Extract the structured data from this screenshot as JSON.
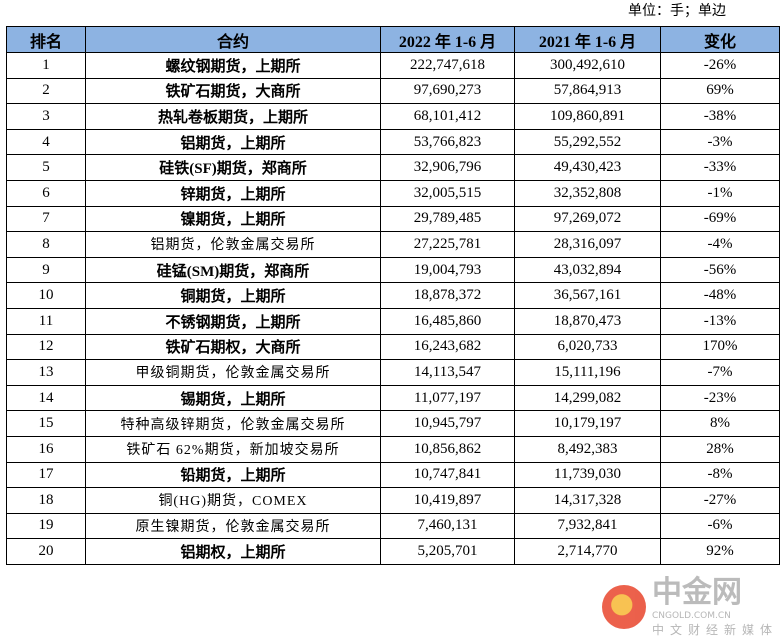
{
  "unit_note": "单位：手；单边",
  "headers": [
    "排名",
    "合约",
    "2022 年 1-6 月",
    "2021 年 1-6 月",
    "变化"
  ],
  "rows": [
    {
      "rank": "1",
      "contract": "螺纹钢期货，上期所",
      "y2022": "222,747,618",
      "y2021": "300,492,610",
      "change": "-26%",
      "bold": true
    },
    {
      "rank": "2",
      "contract": "铁矿石期货，大商所",
      "y2022": "97,690,273",
      "y2021": "57,864,913",
      "change": "69%",
      "bold": true
    },
    {
      "rank": "3",
      "contract": "热轧卷板期货，上期所",
      "y2022": "68,101,412",
      "y2021": "109,860,891",
      "change": "-38%",
      "bold": true
    },
    {
      "rank": "4",
      "contract": "铝期货，上期所",
      "y2022": "53,766,823",
      "y2021": "55,292,552",
      "change": "-3%",
      "bold": true
    },
    {
      "rank": "5",
      "contract": "硅铁(SF)期货，郑商所",
      "y2022": "32,906,796",
      "y2021": "49,430,423",
      "change": "-33%",
      "bold": true
    },
    {
      "rank": "6",
      "contract": "锌期货，上期所",
      "y2022": "32,005,515",
      "y2021": "32,352,808",
      "change": "-1%",
      "bold": true
    },
    {
      "rank": "7",
      "contract": "镍期货，上期所",
      "y2022": "29,789,485",
      "y2021": "97,269,072",
      "change": "-69%",
      "bold": true
    },
    {
      "rank": "8",
      "contract": "铝期货，伦敦金属交易所",
      "y2022": "27,225,781",
      "y2021": "28,316,097",
      "change": "-4%",
      "bold": false
    },
    {
      "rank": "9",
      "contract": "硅锰(SM)期货，郑商所",
      "y2022": "19,004,793",
      "y2021": "43,032,894",
      "change": "-56%",
      "bold": true
    },
    {
      "rank": "10",
      "contract": "铜期货，上期所",
      "y2022": "18,878,372",
      "y2021": "36,567,161",
      "change": "-48%",
      "bold": true
    },
    {
      "rank": "11",
      "contract": "不锈钢期货，上期所",
      "y2022": "16,485,860",
      "y2021": "18,870,473",
      "change": "-13%",
      "bold": true
    },
    {
      "rank": "12",
      "contract": "铁矿石期权，大商所",
      "y2022": "16,243,682",
      "y2021": "6,020,733",
      "change": "170%",
      "bold": true
    },
    {
      "rank": "13",
      "contract": "甲级铜期货，伦敦金属交易所",
      "y2022": "14,113,547",
      "y2021": "15,111,196",
      "change": "-7%",
      "bold": false
    },
    {
      "rank": "14",
      "contract": "锡期货，上期所",
      "y2022": "11,077,197",
      "y2021": "14,299,082",
      "change": "-23%",
      "bold": true
    },
    {
      "rank": "15",
      "contract": "特种高级锌期货，伦敦金属交易所",
      "y2022": "10,945,797",
      "y2021": "10,179,197",
      "change": "8%",
      "bold": false
    },
    {
      "rank": "16",
      "contract": "铁矿石 62%期货，新加坡交易所",
      "y2022": "10,856,862",
      "y2021": "8,492,383",
      "change": "28%",
      "bold": false
    },
    {
      "rank": "17",
      "contract": "铅期货，上期所",
      "y2022": "10,747,841",
      "y2021": "11,739,030",
      "change": "-8%",
      "bold": true
    },
    {
      "rank": "18",
      "contract": "铜(HG)期货，COMEX",
      "y2022": "10,419,897",
      "y2021": "14,317,328",
      "change": "-27%",
      "bold": false
    },
    {
      "rank": "19",
      "contract": "原生镍期货，伦敦金属交易所",
      "y2022": "7,460,131",
      "y2021": "7,932,841",
      "change": "-6%",
      "bold": false
    },
    {
      "rank": "20",
      "contract": "铝期权，上期所",
      "y2022": "5,205,701",
      "y2021": "2,714,770",
      "change": "92%",
      "bold": true
    }
  ],
  "watermark": {
    "name": "中金网",
    "domain": "CNGOLD.COM.CN",
    "slogan": "中文财经新媒体"
  },
  "colors": {
    "header_bg": "#8db3e2"
  }
}
